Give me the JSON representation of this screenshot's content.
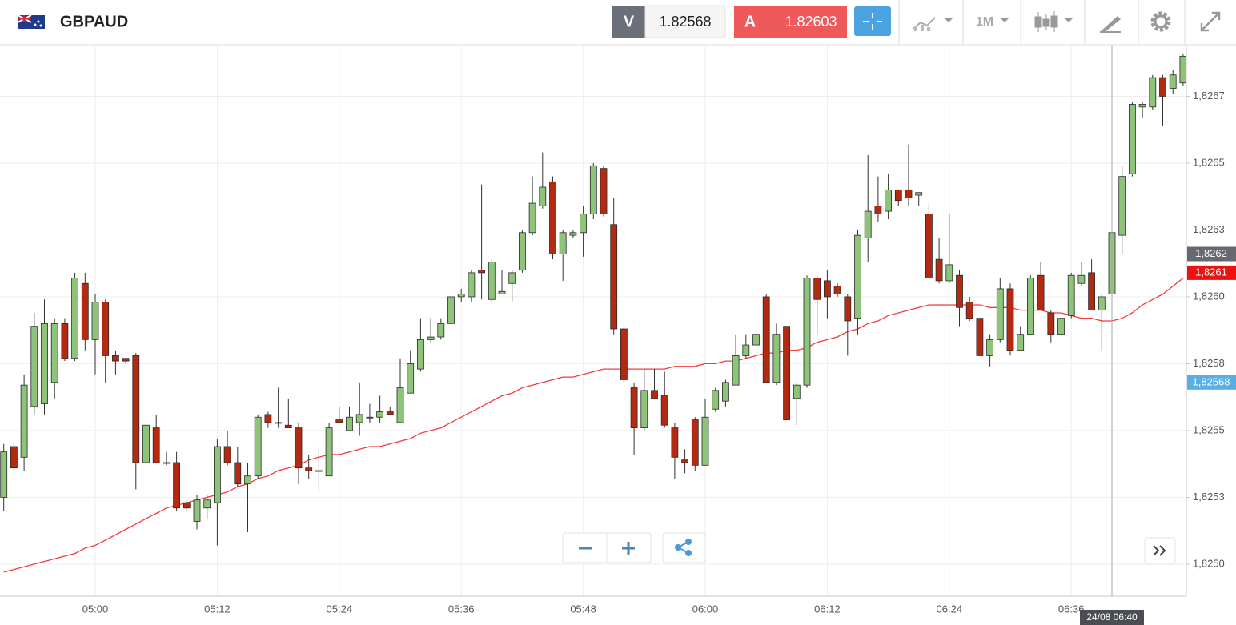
{
  "toolbar": {
    "symbol": "GBPAUD",
    "bid_label": "V",
    "bid": 1.82568,
    "ask_label": "A",
    "ask": 1.82603,
    "interval": "1M"
  },
  "chart_data": {
    "type": "candlestick",
    "categories": [
      null,
      null,
      null,
      null,
      null,
      null,
      null,
      null,
      null,
      "05:00",
      null,
      null,
      null,
      null,
      null,
      null,
      null,
      null,
      null,
      null,
      null,
      "05:12",
      null,
      null,
      null,
      null,
      null,
      null,
      null,
      null,
      null,
      null,
      null,
      "05:24",
      null,
      null,
      null,
      null,
      null,
      null,
      null,
      null,
      null,
      null,
      null,
      "05:36",
      null,
      null,
      null,
      null,
      null,
      null,
      null,
      null,
      null,
      null,
      null,
      "05:48",
      null,
      null,
      null,
      null,
      null,
      null,
      null,
      null,
      null,
      null,
      null,
      "06:00",
      null,
      null,
      null,
      null,
      null,
      null,
      null,
      null,
      null,
      null,
      null,
      "06:12",
      null,
      null,
      null,
      null,
      null,
      null,
      null,
      null,
      null,
      null,
      null,
      "06:24",
      null,
      null,
      null,
      null,
      null,
      null,
      null,
      null,
      null,
      null,
      null,
      "06:36",
      null,
      null,
      null,
      null,
      null,
      null,
      null,
      null,
      null,
      null,
      null
    ],
    "open": [
      1.82525,
      1.82544,
      1.8254,
      1.82559,
      1.8256,
      1.82568,
      1.8259,
      1.82577,
      1.82605,
      1.82584,
      1.82598,
      1.82578,
      1.82577,
      1.82578,
      1.82538,
      1.82551,
      1.82538,
      1.82538,
      1.82523,
      1.82516,
      1.82521,
      1.82523,
      1.82544,
      1.82538,
      1.8253,
      1.82533,
      1.82556,
      1.82553,
      1.82552,
      1.82551,
      1.82536,
      1.82535,
      1.82533,
      1.82554,
      1.8255,
      1.82553,
      1.82555,
      1.82555,
      1.82557,
      1.82553,
      1.82564,
      1.82573,
      1.82584,
      1.82585,
      1.8259,
      1.826,
      1.826,
      1.8261,
      1.82599,
      1.82601,
      1.82605,
      1.8261,
      1.82624,
      1.82634,
      1.82643,
      1.82616,
      1.82623,
      1.82624,
      1.82631,
      1.82648,
      1.82627,
      1.82588,
      1.82566,
      1.82551,
      1.82565,
      1.82563,
      1.82551,
      1.82539,
      1.82554,
      1.82537,
      1.82558,
      1.82561,
      1.82567,
      1.82578,
      1.82582,
      1.826,
      1.82568,
      1.82589,
      1.82562,
      1.82567,
      1.82607,
      1.82606,
      1.82604,
      1.826,
      1.82592,
      1.82622,
      1.82634,
      1.82632,
      1.8264,
      1.8264,
      1.82638,
      1.82631,
      1.82614,
      1.82606,
      1.82608,
      1.82598,
      1.82592,
      1.82578,
      1.82584,
      1.82603,
      1.8258,
      1.82586,
      1.82608,
      1.82594,
      1.82586,
      1.82593,
      1.82605,
      1.82609,
      1.82595,
      1.82601,
      1.82623,
      1.82646,
      1.82671,
      1.82671,
      1.82682,
      1.82678,
      1.8268
    ],
    "high": [
      1.82545,
      1.82545,
      1.82571,
      1.82594,
      1.82599,
      1.82592,
      1.82592,
      1.82609,
      1.82609,
      1.82601,
      1.82599,
      1.8258,
      1.82577,
      1.82579,
      1.82556,
      1.82556,
      1.82542,
      1.82542,
      1.82524,
      1.82526,
      1.82526,
      1.82547,
      1.8255,
      1.82544,
      1.82538,
      1.82556,
      1.82557,
      1.82566,
      1.82562,
      1.82553,
      1.82541,
      1.82544,
      1.82553,
      1.82559,
      1.82559,
      1.82568,
      1.8256,
      1.82563,
      1.82559,
      1.82577,
      1.8258,
      1.82592,
      1.82592,
      1.82592,
      1.82601,
      1.82603,
      1.8261,
      1.82642,
      1.82614,
      1.8261,
      1.8261,
      1.82625,
      1.82645,
      1.82654,
      1.82645,
      1.82625,
      1.82625,
      1.82634,
      1.8265,
      1.82649,
      1.82637,
      1.82589,
      1.82568,
      1.82573,
      1.82573,
      1.82572,
      1.82553,
      1.82543,
      1.82555,
      1.82562,
      1.82566,
      1.82569,
      1.82586,
      1.82586,
      1.82588,
      1.82601,
      1.8259,
      1.82589,
      1.82568,
      1.82608,
      1.82608,
      1.8261,
      1.82605,
      1.82601,
      1.82625,
      1.82653,
      1.82645,
      1.82646,
      1.8264,
      1.82657,
      1.82639,
      1.82635,
      1.82622,
      1.82631,
      1.8261,
      1.826,
      1.82592,
      1.82586,
      1.82607,
      1.82605,
      1.82589,
      1.82608,
      1.82613,
      1.82595,
      1.82593,
      1.82609,
      1.82613,
      1.82614,
      1.82601,
      1.82625,
      1.82649,
      1.82673,
      1.82673,
      1.82683,
      1.82683,
      1.82685,
      1.82691
    ],
    "low": [
      1.8252,
      1.82535,
      1.82535,
      1.82556,
      1.82556,
      1.82562,
      1.82576,
      1.82576,
      1.8258,
      1.82571,
      1.82568,
      1.82571,
      1.82575,
      1.82528,
      1.82538,
      1.82538,
      1.82537,
      1.8252,
      1.8252,
      1.82513,
      1.82517,
      1.82507,
      1.82537,
      1.82529,
      1.82512,
      1.82532,
      1.82551,
      1.82551,
      1.82551,
      1.8253,
      1.82532,
      1.82527,
      1.82533,
      1.82553,
      1.8255,
      1.82548,
      1.82553,
      1.82553,
      1.82556,
      1.82553,
      1.82564,
      1.82572,
      1.82583,
      1.82584,
      1.82581,
      1.82598,
      1.82598,
      1.82599,
      1.82598,
      1.82601,
      1.82598,
      1.82609,
      1.82623,
      1.82633,
      1.82614,
      1.82606,
      1.82622,
      1.82615,
      1.82629,
      1.8263,
      1.82586,
      1.82568,
      1.82541,
      1.8255,
      1.82562,
      1.82551,
      1.82532,
      1.82534,
      1.82535,
      1.82537,
      1.82557,
      1.82559,
      1.82567,
      1.82577,
      1.82581,
      1.82568,
      1.82567,
      1.82554,
      1.82552,
      1.82566,
      1.82586,
      1.82592,
      1.826,
      1.82578,
      1.82586,
      1.82613,
      1.82628,
      1.82629,
      1.82634,
      1.82634,
      1.82634,
      1.82607,
      1.82605,
      1.82605,
      1.82589,
      1.82591,
      1.82578,
      1.82574,
      1.82583,
      1.82578,
      1.8258,
      1.82586,
      1.82595,
      1.82583,
      1.82573,
      1.82592,
      1.82604,
      1.82595,
      1.8258,
      1.826,
      1.82616,
      1.82645,
      1.82667,
      1.8267,
      1.82664,
      1.82676,
      1.82679
    ],
    "close": [
      1.82542,
      1.82536,
      1.82567,
      1.82589,
      1.8259,
      1.8259,
      1.82577,
      1.82607,
      1.82584,
      1.82598,
      1.82578,
      1.82576,
      1.82576,
      1.82538,
      1.82552,
      1.82538,
      1.82538,
      1.82521,
      1.82521,
      1.82524,
      1.82524,
      1.82544,
      1.82538,
      1.8253,
      1.82533,
      1.82555,
      1.82553,
      1.82553,
      1.82551,
      1.82536,
      1.82535,
      1.82535,
      1.82551,
      1.82553,
      1.82555,
      1.82556,
      1.82555,
      1.82557,
      1.82556,
      1.82566,
      1.82575,
      1.82584,
      1.82585,
      1.8259,
      1.826,
      1.82601,
      1.82609,
      1.82609,
      1.82613,
      1.82602,
      1.82609,
      1.82624,
      1.82635,
      1.82641,
      1.82616,
      1.82624,
      1.82624,
      1.82631,
      1.82649,
      1.82631,
      1.82588,
      1.82569,
      1.82551,
      1.82565,
      1.82562,
      1.82552,
      1.8254,
      1.82538,
      1.82537,
      1.82555,
      1.82565,
      1.82568,
      1.82578,
      1.82582,
      1.82586,
      1.82568,
      1.82586,
      1.82554,
      1.82567,
      1.82607,
      1.82599,
      1.826,
      1.82601,
      1.82591,
      1.82623,
      1.82632,
      1.82631,
      1.8264,
      1.82636,
      1.82637,
      1.82639,
      1.82607,
      1.82606,
      1.82612,
      1.82596,
      1.82592,
      1.82578,
      1.82584,
      1.82603,
      1.8258,
      1.82586,
      1.82607,
      1.82595,
      1.82586,
      1.82592,
      1.82608,
      1.82608,
      1.82595,
      1.826,
      1.82624,
      1.82645,
      1.82672,
      1.82672,
      1.82682,
      1.82675,
      1.82683,
      1.8269
    ],
    "up_color": "#8dc47a",
    "down_color": "#b32a10",
    "ma": {
      "color": "#f03c3c",
      "values": [
        1.82497,
        1.82498,
        1.82499,
        1.825,
        1.82501,
        1.82502,
        1.82503,
        1.82504,
        1.82506,
        1.82507,
        1.82509,
        1.82511,
        1.82513,
        1.82515,
        1.82517,
        1.82519,
        1.82521,
        1.82522,
        1.82523,
        1.82524,
        1.82525,
        1.82526,
        1.82527,
        1.82529,
        1.8253,
        1.82532,
        1.82533,
        1.82535,
        1.82536,
        1.82537,
        1.82539,
        1.8254,
        1.82541,
        1.82541,
        1.82542,
        1.82543,
        1.82544,
        1.82544,
        1.82545,
        1.82546,
        1.82547,
        1.82549,
        1.8255,
        1.82551,
        1.82553,
        1.82555,
        1.82557,
        1.82559,
        1.82561,
        1.82563,
        1.82564,
        1.82566,
        1.82567,
        1.82568,
        1.82569,
        1.8257,
        1.8257,
        1.82571,
        1.82572,
        1.82573,
        1.82573,
        1.82573,
        1.82573,
        1.82573,
        1.82573,
        1.82573,
        1.82574,
        1.82574,
        1.82574,
        1.82575,
        1.82575,
        1.82576,
        1.82576,
        1.82577,
        1.82578,
        1.82579,
        1.82579,
        1.8258,
        1.8258,
        1.82581,
        1.82583,
        1.82584,
        1.82585,
        1.82587,
        1.82588,
        1.8259,
        1.82591,
        1.82593,
        1.82594,
        1.82595,
        1.82596,
        1.82597,
        1.82597,
        1.82597,
        1.82597,
        1.82597,
        1.82597,
        1.82596,
        1.82596,
        1.82596,
        1.82595,
        1.82595,
        1.82595,
        1.82594,
        1.82594,
        1.82593,
        1.82592,
        1.82592,
        1.82591,
        1.82591,
        1.82592,
        1.82594,
        1.82597,
        1.82599,
        1.82601,
        1.82604,
        1.82607
      ]
    },
    "ylim": [
      1.82488,
      1.82694
    ],
    "yticks": [
      {
        "value": 1.825,
        "label": "1,8250"
      },
      {
        "value": 1.82525,
        "label": "1,8253"
      },
      {
        "value": 1.8255,
        "label": "1,8255"
      },
      {
        "value": 1.82575,
        "label": "1,8258"
      },
      {
        "value": 1.826,
        "label": "1,8260"
      },
      {
        "value": 1.82625,
        "label": "1,8263"
      },
      {
        "value": 1.8265,
        "label": "1,8265"
      },
      {
        "value": 1.82675,
        "label": "1,8267"
      }
    ],
    "grid": true,
    "crosshair": {
      "value": 1.82616,
      "label": "1,8262",
      "time_label": "24/08 06:40",
      "color": "#666a70"
    },
    "price_markers": [
      {
        "value": 1.82609,
        "label": "1,8261",
        "color": "#ee1111"
      },
      {
        "value": 1.82568,
        "label": "1,82568",
        "color": "#5aaee6"
      }
    ]
  }
}
